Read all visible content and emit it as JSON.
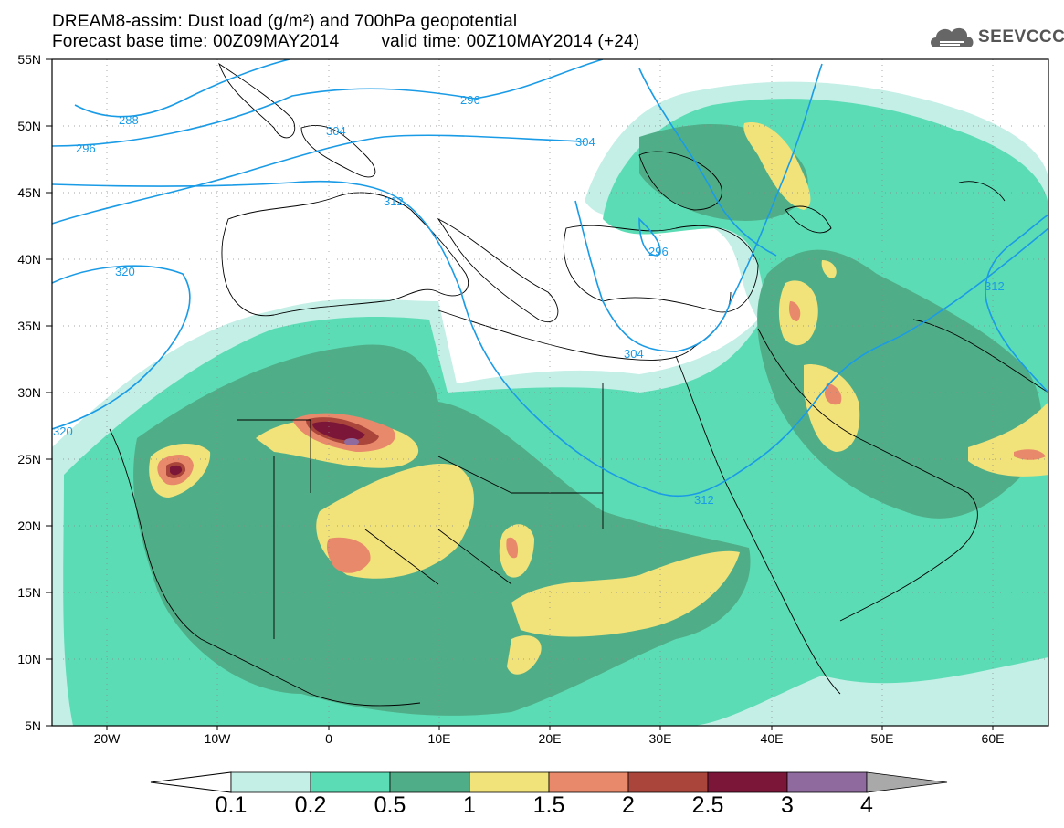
{
  "header": {
    "title_line1": "DREAM8-assim: Dust load (g/m²) and 700hPa geopotential",
    "base_time": "Forecast base time: 00Z09MAY2014",
    "valid_time": "valid time: 00Z10MAY2014 (+24)"
  },
  "logo": {
    "text": "SEEVCCC",
    "icon": "cloud-icon"
  },
  "map": {
    "lat_labels": [
      "55N",
      "50N",
      "45N",
      "40N",
      "35N",
      "30N",
      "25N",
      "20N",
      "15N",
      "10N",
      "5N"
    ],
    "lon_labels": [
      "20W",
      "10W",
      "0",
      "10E",
      "20E",
      "30E",
      "40E",
      "50E",
      "60E"
    ],
    "contour_labels": [
      "288",
      "296",
      "296",
      "304",
      "304",
      "312",
      "296",
      "312",
      "320",
      "320",
      "304",
      "312"
    ]
  },
  "colorbar": {
    "labels": [
      "0.1",
      "0.2",
      "0.5",
      "1",
      "1.5",
      "2",
      "2.5",
      "3",
      "4"
    ],
    "colors": [
      "#c3efe6",
      "#5cdcb5",
      "#4fae88",
      "#f2e27a",
      "#e8896b",
      "#a9453a",
      "#7b1638",
      "#8e6a9e",
      "#a9a9a9"
    ]
  }
}
